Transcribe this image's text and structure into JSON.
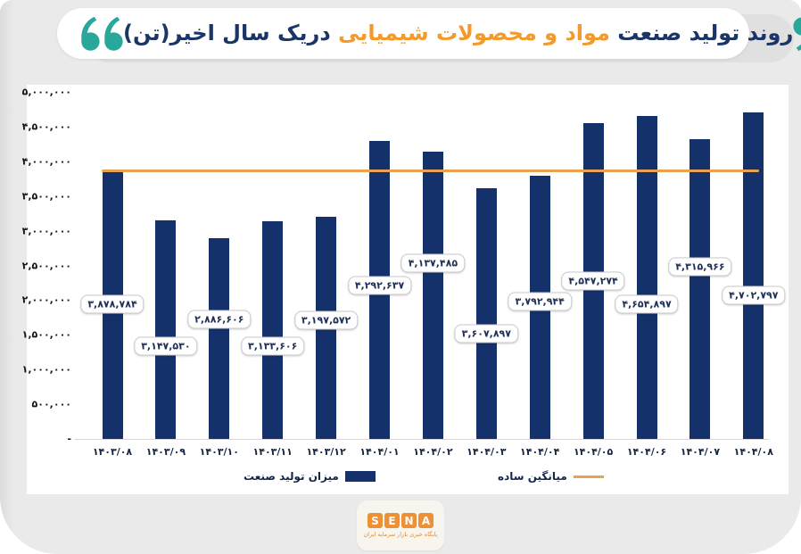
{
  "title": {
    "part1": "روند تولید صنعت",
    "part2": "مواد و محصولات شیمیایی",
    "part3": "دریک سال اخیر(تن)"
  },
  "colors": {
    "bar": "#14316b",
    "average_line": "#e9a251",
    "title_navy": "#1b3666",
    "title_orange": "#f39a2d",
    "quote_teal": "#2aa79b",
    "card_gray": "#eaeaea",
    "logo_orange": "#ed9036"
  },
  "chart_data": {
    "type": "bar",
    "title": "روند تولید صنعت مواد و محصولات شیمیایی دریک سال اخیر(تن)",
    "xlabel": "",
    "ylabel": "",
    "ylim": [
      0,
      5000000
    ],
    "ytick_step": 500000,
    "grid": false,
    "legend_position": "bottom",
    "categories": [
      "۱۴۰۳/۰۸",
      "۱۴۰۳/۰۹",
      "۱۴۰۳/۱۰",
      "۱۴۰۳/۱۱",
      "۱۴۰۳/۱۲",
      "۱۴۰۴/۰۱",
      "۱۴۰۴/۰۲",
      "۱۴۰۴/۰۳",
      "۱۴۰۴/۰۴",
      "۱۴۰۴/۰۵",
      "۱۴۰۴/۰۶",
      "۱۴۰۴/۰۷",
      "۱۴۰۴/۰۸"
    ],
    "values": [
      3878784,
      3147530,
      2886606,
      3133606,
      3197572,
      4292637,
      4137485,
      3607897,
      3792944,
      4547274,
      4654897,
      4315966,
      4702797
    ],
    "value_labels": [
      "۳,۸۷۸,۷۸۴",
      "۳,۱۴۷,۵۳۰",
      "۲,۸۸۶,۶۰۶",
      "۳,۱۳۳,۶۰۶",
      "۳,۱۹۷,۵۷۲",
      "۴,۲۹۲,۶۳۷",
      "۴,۱۳۷,۴۸۵",
      "۳,۶۰۷,۸۹۷",
      "۳,۷۹۲,۹۴۴",
      "۴,۵۴۷,۲۷۴",
      "۴,۶۵۴,۸۹۷",
      "۴,۳۱۵,۹۶۶",
      "۴,۷۰۲,۷۹۷"
    ],
    "ytick_labels": [
      "۵,۰۰۰,۰۰۰",
      "۴,۵۰۰,۰۰۰",
      "۴,۰۰۰,۰۰۰",
      "۳,۵۰۰,۰۰۰",
      "۳,۰۰۰,۰۰۰",
      "۲,۵۰۰,۰۰۰",
      "۲,۰۰۰,۰۰۰",
      "۱,۵۰۰,۰۰۰",
      "۱,۰۰۰,۰۰۰",
      "۵۰۰,۰۰۰",
      "-"
    ],
    "average_line_value": 3868923,
    "legend": [
      {
        "label": "میزان تولید صنعت",
        "type": "bar"
      },
      {
        "label": "میانگین ساده",
        "type": "line"
      }
    ]
  },
  "footer": {
    "logo_letters": [
      "S",
      "E",
      "N",
      "A"
    ],
    "logo_subtitle": "پایگاه خبری بازار سرمایه ایران"
  }
}
